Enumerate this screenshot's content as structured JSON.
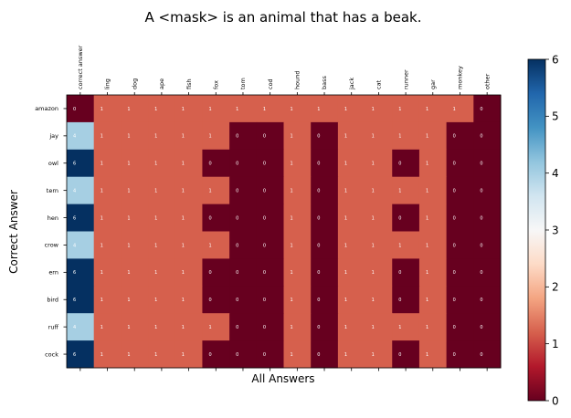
{
  "chart_data": {
    "type": "heatmap",
    "title": "A <mask> is an animal that has a beak.",
    "xlabel": "All Answers",
    "ylabel": "Correct Answer",
    "x_categories": [
      "correct answer",
      "ling",
      "dog",
      "ape",
      "fish",
      "fox",
      "tom",
      "cod",
      "hound",
      "bass",
      "jack",
      "cat",
      "runner",
      "gar",
      "monkey",
      "other"
    ],
    "y_categories": [
      "amazon",
      "jay",
      "owl",
      "tern",
      "hen",
      "crow",
      "ern",
      "bird",
      "ruff",
      "cock"
    ],
    "values": [
      [
        0,
        1,
        1,
        1,
        1,
        1,
        1,
        1,
        1,
        1,
        1,
        1,
        1,
        1,
        1,
        0
      ],
      [
        4,
        1,
        1,
        1,
        1,
        1,
        0,
        0,
        1,
        0,
        1,
        1,
        1,
        1,
        0,
        0
      ],
      [
        6,
        1,
        1,
        1,
        1,
        0,
        0,
        0,
        1,
        0,
        1,
        1,
        0,
        1,
        0,
        0
      ],
      [
        4,
        1,
        1,
        1,
        1,
        1,
        0,
        0,
        1,
        0,
        1,
        1,
        1,
        1,
        0,
        0
      ],
      [
        6,
        1,
        1,
        1,
        1,
        0,
        0,
        0,
        1,
        0,
        1,
        1,
        0,
        1,
        0,
        0
      ],
      [
        4,
        1,
        1,
        1,
        1,
        1,
        0,
        0,
        1,
        0,
        1,
        1,
        1,
        1,
        0,
        0
      ],
      [
        6,
        1,
        1,
        1,
        1,
        0,
        0,
        0,
        1,
        0,
        1,
        1,
        0,
        1,
        0,
        0
      ],
      [
        6,
        1,
        1,
        1,
        1,
        0,
        0,
        0,
        1,
        0,
        1,
        1,
        0,
        1,
        0,
        0
      ],
      [
        4,
        1,
        1,
        1,
        1,
        1,
        0,
        0,
        1,
        0,
        1,
        1,
        1,
        1,
        0,
        0
      ],
      [
        6,
        1,
        1,
        1,
        1,
        0,
        0,
        0,
        1,
        0,
        1,
        1,
        0,
        1,
        0,
        0
      ]
    ],
    "colormap": "RdBu",
    "vmin": 0,
    "vmax": 6,
    "colorbar_ticks": [
      0,
      1,
      2,
      3,
      4,
      5,
      6
    ],
    "colors": {
      "0": "#67001f",
      "1": "#d6604d",
      "4": "#a6cfe3",
      "6": "#053061"
    }
  }
}
